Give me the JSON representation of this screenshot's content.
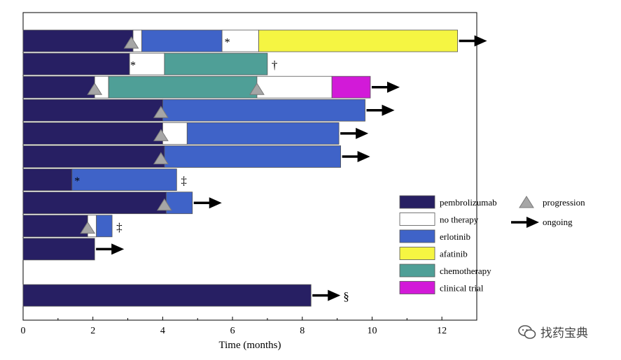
{
  "chart_data": {
    "type": "bar",
    "subtype": "swimmer-plot",
    "xlabel": "Time (months)",
    "xlim": [
      0,
      13
    ],
    "x_ticks": [
      0,
      2,
      4,
      6,
      8,
      10,
      12
    ],
    "grid": false,
    "legend_placement": "right",
    "treatments": [
      {
        "key": "pembrolizumab",
        "label": "pembrolizumab",
        "color": "#271f63"
      },
      {
        "key": "no_therapy",
        "label": "no therapy",
        "color": "#ffffff"
      },
      {
        "key": "erlotinib",
        "label": "erlotinib",
        "color": "#3f63c8"
      },
      {
        "key": "afatinib",
        "label": "afatinib",
        "color": "#f5f542"
      },
      {
        "key": "chemotherapy",
        "label": "chemotherapy",
        "color": "#4f9f97"
      },
      {
        "key": "clinical_trial",
        "label": "clinical trial",
        "color": "#d21ad8"
      }
    ],
    "marker_legend": [
      {
        "key": "progression",
        "label": "progression"
      },
      {
        "key": "ongoing",
        "label": "ongoing"
      }
    ],
    "patients": [
      {
        "segments": [
          {
            "t": "pembrolizumab",
            "start": 0,
            "end": 3.15
          },
          {
            "t": "no_therapy",
            "start": 3.15,
            "end": 3.4
          },
          {
            "t": "erlotinib",
            "start": 3.4,
            "end": 5.7
          },
          {
            "t": "no_therapy",
            "start": 5.7,
            "end": 6.75
          },
          {
            "t": "afatinib",
            "start": 6.75,
            "end": 12.45
          }
        ],
        "progression": [
          3.1
        ],
        "annotations": [
          {
            "x": 5.85,
            "text": "*"
          }
        ],
        "ongoing": true,
        "end_note": ""
      },
      {
        "segments": [
          {
            "t": "pembrolizumab",
            "start": 0,
            "end": 3.05
          },
          {
            "t": "no_therapy",
            "start": 3.05,
            "end": 4.05
          },
          {
            "t": "chemotherapy",
            "start": 4.05,
            "end": 7.0
          }
        ],
        "progression": [],
        "annotations": [
          {
            "x": 3.15,
            "text": "*"
          }
        ],
        "ongoing": false,
        "end_note": "†"
      },
      {
        "segments": [
          {
            "t": "pembrolizumab",
            "start": 0,
            "end": 2.05
          },
          {
            "t": "no_therapy",
            "start": 2.05,
            "end": 2.45
          },
          {
            "t": "chemotherapy",
            "start": 2.45,
            "end": 6.7
          },
          {
            "t": "no_therapy",
            "start": 6.7,
            "end": 8.85
          },
          {
            "t": "clinical_trial",
            "start": 8.85,
            "end": 9.95
          }
        ],
        "progression": [
          2.05,
          6.7
        ],
        "annotations": [],
        "ongoing": true,
        "end_note": ""
      },
      {
        "segments": [
          {
            "t": "pembrolizumab",
            "start": 0,
            "end": 4.0
          },
          {
            "t": "erlotinib",
            "start": 4.0,
            "end": 9.8
          }
        ],
        "progression": [
          3.95
        ],
        "annotations": [],
        "ongoing": true,
        "end_note": ""
      },
      {
        "segments": [
          {
            "t": "pembrolizumab",
            "start": 0,
            "end": 4.0
          },
          {
            "t": "no_therapy",
            "start": 4.0,
            "end": 4.7
          },
          {
            "t": "erlotinib",
            "start": 4.7,
            "end": 9.05
          }
        ],
        "progression": [
          3.95
        ],
        "annotations": [],
        "ongoing": true,
        "end_note": ""
      },
      {
        "segments": [
          {
            "t": "pembrolizumab",
            "start": 0,
            "end": 4.05
          },
          {
            "t": "erlotinib",
            "start": 4.05,
            "end": 9.1
          }
        ],
        "progression": [
          3.95
        ],
        "annotations": [],
        "ongoing": true,
        "end_note": ""
      },
      {
        "segments": [
          {
            "t": "pembrolizumab",
            "start": 0,
            "end": 1.4
          },
          {
            "t": "erlotinib",
            "start": 1.4,
            "end": 4.4
          }
        ],
        "progression": [],
        "annotations": [
          {
            "x": 1.55,
            "text": "*"
          }
        ],
        "ongoing": false,
        "end_note": "‡"
      },
      {
        "segments": [
          {
            "t": "pembrolizumab",
            "start": 0,
            "end": 4.1
          },
          {
            "t": "erlotinib",
            "start": 4.1,
            "end": 4.85
          }
        ],
        "progression": [
          4.05
        ],
        "annotations": [],
        "ongoing": true,
        "end_note": ""
      },
      {
        "segments": [
          {
            "t": "pembrolizumab",
            "start": 0,
            "end": 1.85
          },
          {
            "t": "no_therapy",
            "start": 1.85,
            "end": 2.1
          },
          {
            "t": "erlotinib",
            "start": 2.1,
            "end": 2.55
          }
        ],
        "progression": [
          1.85
        ],
        "annotations": [],
        "ongoing": false,
        "end_note": "‡"
      },
      {
        "segments": [
          {
            "t": "pembrolizumab",
            "start": 0,
            "end": 2.05
          }
        ],
        "progression": [],
        "annotations": [],
        "ongoing": true,
        "end_note": ""
      },
      {
        "segments": [],
        "progression": [],
        "annotations": [],
        "ongoing": false,
        "end_note": ""
      },
      {
        "segments": [
          {
            "t": "pembrolizumab",
            "start": 0,
            "end": 8.25
          }
        ],
        "progression": [],
        "annotations": [],
        "ongoing": true,
        "end_note": "§"
      }
    ]
  },
  "watermark": {
    "text": "找药宝典",
    "icon": "wechat-icon"
  }
}
